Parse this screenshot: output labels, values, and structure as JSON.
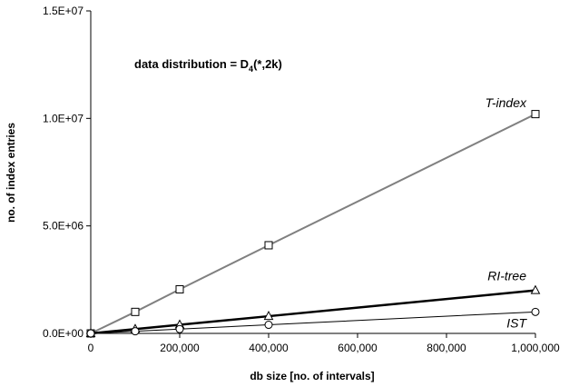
{
  "chart_data": {
    "type": "line",
    "title_prefix": "data distribution = D",
    "title_sub": "4",
    "title_suffix": "(*,2k)",
    "xlabel": "db size [no. of intervals]",
    "ylabel": "no. of index entries",
    "xlim": [
      0,
      1000000
    ],
    "ylim": [
      0,
      15000000
    ],
    "x_ticks": [
      {
        "value": 0,
        "label": "0"
      },
      {
        "value": 200000,
        "label": "200,000"
      },
      {
        "value": 400000,
        "label": "400,000"
      },
      {
        "value": 600000,
        "label": "600,000"
      },
      {
        "value": 800000,
        "label": "800,000"
      },
      {
        "value": 1000000,
        "label": "1,000,000"
      }
    ],
    "y_ticks": [
      {
        "value": 0,
        "label": "0.0E+00"
      },
      {
        "value": 5000000,
        "label": "5.0E+06"
      },
      {
        "value": 10000000,
        "label": "1.0E+07"
      },
      {
        "value": 15000000,
        "label": "1.5E+07"
      }
    ],
    "grid": false,
    "series": [
      {
        "name": "T-index",
        "marker": "square",
        "color": "#808080",
        "line_width": 2,
        "label_value": [
          1000000,
          10700000
        ],
        "points": [
          [
            0,
            0
          ],
          [
            100000,
            1000000
          ],
          [
            200000,
            2050000
          ],
          [
            400000,
            4100000
          ],
          [
            1000000,
            10200000
          ]
        ]
      },
      {
        "name": "RI-tree",
        "marker": "triangle",
        "color": "#000000",
        "line_width": 2.5,
        "label_value": [
          1000000,
          2650000
        ],
        "points": [
          [
            0,
            0
          ],
          [
            100000,
            200000
          ],
          [
            200000,
            400000
          ],
          [
            400000,
            800000
          ],
          [
            1000000,
            2000000
          ]
        ]
      },
      {
        "name": "IST",
        "marker": "circle",
        "color": "#000000",
        "line_width": 1,
        "label_value": [
          1000000,
          450000
        ],
        "points": [
          [
            0,
            0
          ],
          [
            100000,
            100000
          ],
          [
            200000,
            200000
          ],
          [
            400000,
            400000
          ],
          [
            1000000,
            1000000
          ]
        ]
      }
    ]
  }
}
